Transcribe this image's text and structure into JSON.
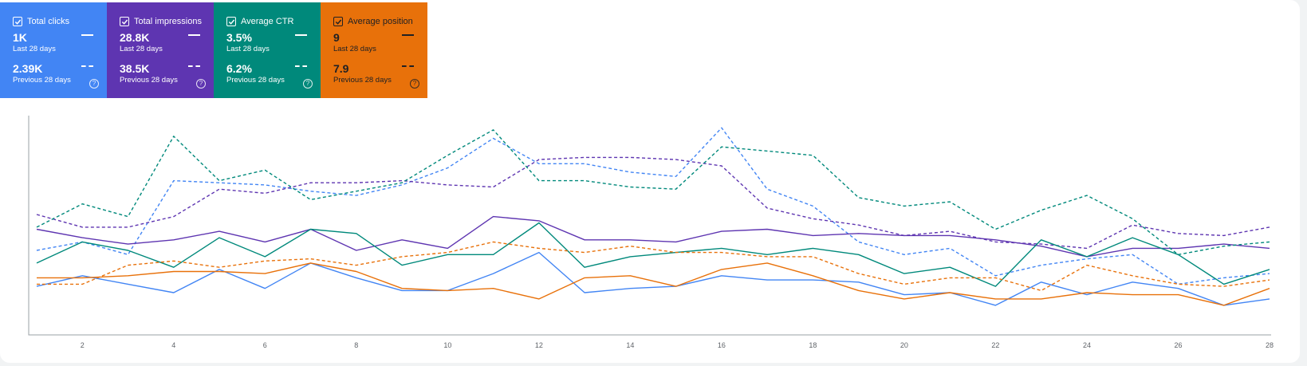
{
  "cards": [
    {
      "key": "clicks",
      "title": "Total clicks",
      "current_value": "1K",
      "current_period": "Last 28 days",
      "previous_value": "2.39K",
      "previous_period": "Previous 28 days",
      "checked": true,
      "color": "#4285f4",
      "icon": "help-icon"
    },
    {
      "key": "impr",
      "title": "Total impressions",
      "current_value": "28.8K",
      "current_period": "Last 28 days",
      "previous_value": "38.5K",
      "previous_period": "Previous 28 days",
      "checked": true,
      "color": "#5e35b1",
      "icon": "help-icon"
    },
    {
      "key": "ctr",
      "title": "Average CTR",
      "current_value": "3.5%",
      "current_period": "Last 28 days",
      "previous_value": "6.2%",
      "previous_period": "Previous 28 days",
      "checked": true,
      "color": "#00897b",
      "icon": "help-icon"
    },
    {
      "key": "pos",
      "title": "Average position",
      "current_value": "9",
      "current_period": "Last 28 days",
      "previous_value": "7.9",
      "previous_period": "Previous 28 days",
      "checked": true,
      "color": "#e8710a",
      "icon": "help-icon"
    }
  ],
  "help_glyph": "?",
  "chart_data": {
    "type": "line",
    "x": [
      1,
      2,
      3,
      4,
      5,
      6,
      7,
      8,
      9,
      10,
      11,
      12,
      13,
      14,
      15,
      16,
      17,
      18,
      19,
      20,
      21,
      22,
      23,
      24,
      25,
      26,
      27,
      28
    ],
    "xticks": [
      "2",
      "4",
      "6",
      "8",
      "10",
      "12",
      "14",
      "16",
      "18",
      "20",
      "22",
      "24",
      "26",
      "28"
    ],
    "ylim": [
      0,
      100
    ],
    "grid": false,
    "series": [
      {
        "metric": "clicks",
        "period": "current",
        "style": "solid",
        "color": "#4285f4",
        "values": [
          23,
          28,
          24,
          20,
          31,
          22,
          34,
          27,
          21,
          21,
          29,
          39,
          20,
          22,
          23,
          28,
          26,
          26,
          25,
          19,
          20,
          14,
          25,
          19,
          25,
          22,
          14,
          17
        ]
      },
      {
        "metric": "clicks",
        "period": "previous",
        "style": "dashed",
        "color": "#4285f4",
        "values": [
          40,
          44,
          38,
          73,
          72,
          71,
          68,
          66,
          71,
          79,
          93,
          81,
          81,
          77,
          75,
          98,
          69,
          61,
          44,
          38,
          41,
          28,
          33,
          36,
          38,
          24,
          27,
          29
        ]
      },
      {
        "metric": "impr",
        "period": "current",
        "style": "solid",
        "color": "#5e35b1",
        "values": [
          50,
          46,
          43,
          45,
          49,
          44,
          50,
          40,
          45,
          41,
          56,
          54,
          45,
          45,
          44,
          49,
          50,
          47,
          48,
          47,
          47,
          45,
          42,
          37,
          41,
          41,
          43,
          41
        ]
      },
      {
        "metric": "impr",
        "period": "previous",
        "style": "dashed",
        "color": "#5e35b1",
        "values": [
          57,
          51,
          51,
          56,
          69,
          67,
          72,
          72,
          73,
          71,
          70,
          83,
          84,
          84,
          83,
          80,
          60,
          55,
          52,
          47,
          49,
          44,
          43,
          41,
          52,
          48,
          47,
          51
        ]
      },
      {
        "metric": "ctr",
        "period": "current",
        "style": "solid",
        "color": "#00897b",
        "values": [
          34,
          44,
          40,
          32,
          46,
          37,
          50,
          48,
          33,
          38,
          38,
          53,
          32,
          37,
          39,
          41,
          38,
          41,
          38,
          29,
          32,
          23,
          45,
          37,
          46,
          38,
          24,
          31
        ]
      },
      {
        "metric": "ctr",
        "period": "previous",
        "style": "dashed",
        "color": "#00897b",
        "values": [
          51,
          62,
          56,
          94,
          73,
          78,
          64,
          68,
          72,
          85,
          97,
          73,
          73,
          70,
          69,
          89,
          87,
          85,
          65,
          61,
          63,
          50,
          59,
          66,
          55,
          38,
          42,
          44
        ]
      },
      {
        "metric": "pos",
        "period": "current",
        "style": "solid",
        "color": "#e8710a",
        "values": [
          27,
          27,
          28,
          30,
          30,
          29,
          34,
          30,
          22,
          21,
          22,
          17,
          27,
          28,
          23,
          31,
          34,
          28,
          21,
          17,
          20,
          17,
          17,
          20,
          19,
          19,
          14,
          22
        ]
      },
      {
        "metric": "pos",
        "period": "previous",
        "style": "dashed",
        "color": "#e8710a",
        "values": [
          24,
          24,
          33,
          35,
          32,
          35,
          36,
          33,
          37,
          39,
          44,
          41,
          39,
          42,
          39,
          39,
          37,
          37,
          29,
          24,
          27,
          27,
          21,
          33,
          28,
          24,
          23,
          26
        ]
      }
    ]
  }
}
